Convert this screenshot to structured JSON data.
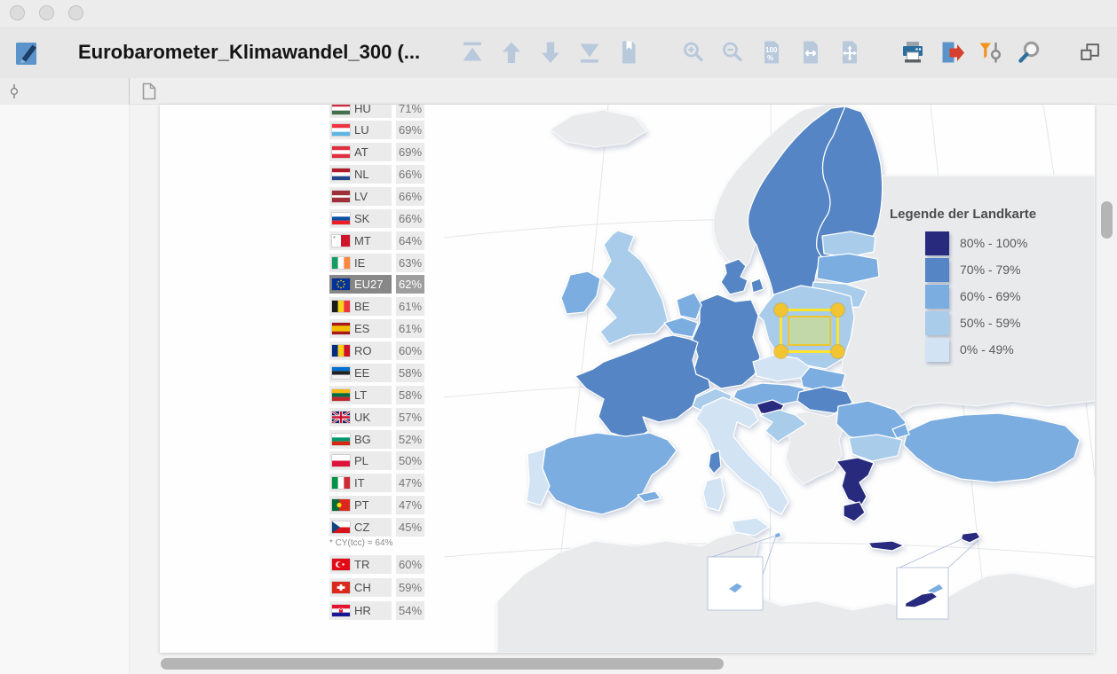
{
  "window": {
    "title": "Eurobarometer_Klimawandel_300 (..."
  },
  "toolbar": {
    "nav_icons": [
      {
        "name": "go-first-page"
      },
      {
        "name": "go-previous-page"
      },
      {
        "name": "go-next-page"
      },
      {
        "name": "go-last-page"
      },
      {
        "name": "bookmarks"
      }
    ],
    "zoom_icons": [
      {
        "name": "zoom-in"
      },
      {
        "name": "zoom-out"
      },
      {
        "name": "zoom-100"
      },
      {
        "name": "fit-width"
      },
      {
        "name": "fit-page"
      }
    ],
    "action_icons": [
      {
        "name": "print"
      },
      {
        "name": "export"
      },
      {
        "name": "filter"
      },
      {
        "name": "search"
      }
    ],
    "window_icons": [
      {
        "name": "undock"
      }
    ]
  },
  "subtoolbar": {
    "icons": [
      {
        "name": "coding-stripes"
      },
      {
        "name": "document"
      }
    ]
  },
  "document": {
    "ranking": {
      "rows": [
        {
          "code": "HU",
          "value": "71%"
        },
        {
          "code": "LU",
          "value": "69%"
        },
        {
          "code": "AT",
          "value": "69%"
        },
        {
          "code": "NL",
          "value": "66%"
        },
        {
          "code": "LV",
          "value": "66%"
        },
        {
          "code": "SK",
          "value": "66%"
        },
        {
          "code": "MT",
          "value": "64%"
        },
        {
          "code": "IE",
          "value": "63%"
        },
        {
          "code": "EU27",
          "value": "62%",
          "highlight": true
        },
        {
          "code": "BE",
          "value": "61%"
        },
        {
          "code": "ES",
          "value": "61%"
        },
        {
          "code": "RO",
          "value": "60%"
        },
        {
          "code": "EE",
          "value": "58%"
        },
        {
          "code": "LT",
          "value": "58%"
        },
        {
          "code": "UK",
          "value": "57%"
        },
        {
          "code": "BG",
          "value": "52%"
        },
        {
          "code": "PL",
          "value": "50%"
        },
        {
          "code": "IT",
          "value": "47%"
        },
        {
          "code": "PT",
          "value": "47%"
        },
        {
          "code": "CZ",
          "value": "45%"
        }
      ],
      "footnote": "* CY(tcc) = 64%",
      "extra_rows": [
        {
          "code": "TR",
          "value": "60%"
        },
        {
          "code": "CH",
          "value": "59%"
        },
        {
          "code": "HR",
          "value": "54%"
        }
      ]
    },
    "map_legend": {
      "title": "Legende der Landkarte",
      "items": [
        {
          "label": "80% - 100%",
          "color": "#272a7d"
        },
        {
          "label": "70% - 79%",
          "color": "#5585c4"
        },
        {
          "label": "60% - 69%",
          "color": "#7cade0"
        },
        {
          "label": "50% - 59%",
          "color": "#a9cceb"
        },
        {
          "label": "0% - 49%",
          "color": "#d2e3f4"
        }
      ]
    },
    "map": {
      "non_eu_color": "#e9eaec",
      "country_tiers": {
        "greece": 0,
        "slovenia": 0,
        "cyprus": 0,
        "cyprus-inset": 0,
        "sweden": 1,
        "finland": 1,
        "denmark": 1,
        "denmark-island": 1,
        "germany": 1,
        "france": 1,
        "hungary": 1,
        "corsica": 1,
        "ireland": 2,
        "netherlands": 2,
        "belgium": 2,
        "austria": 2,
        "slovakia": 2,
        "romania": 2,
        "spain": 2,
        "turkey": 2,
        "turkey-europe": 2,
        "latvia": 2,
        "malta-inset": 2,
        "malta": 2,
        "balearics": 2,
        "cyprus-north-inset": 2,
        "uk": 3,
        "poland": 3,
        "switzerland": 3,
        "croatia": 3,
        "bulgaria": 3,
        "estonia": 3,
        "lithuania": 3,
        "greece-crete": 0,
        "greece-peloponnese": 0,
        "czechia": 4,
        "italy": 4,
        "portugal": 4,
        "sicily": 4,
        "sardinia": 4
      }
    },
    "selection": {
      "outer_color": "#ffe52b",
      "inner_color": "#eec62a",
      "fill": "rgba(203,219,150,0.78)",
      "handle_color": "#f2c431"
    }
  }
}
